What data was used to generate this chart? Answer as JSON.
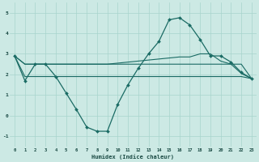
{
  "xlabel": "Humidex (Indice chaleur)",
  "background_color": "#cce9e4",
  "grid_color": "#a8d4cc",
  "line_color": "#1a6b64",
  "xlim": [
    -0.5,
    23.5
  ],
  "ylim": [
    -1.5,
    5.5
  ],
  "yticks": [
    -1,
    0,
    1,
    2,
    3,
    4,
    5
  ],
  "xticks": [
    0,
    1,
    2,
    3,
    4,
    5,
    6,
    7,
    8,
    9,
    10,
    11,
    12,
    13,
    14,
    15,
    16,
    17,
    18,
    19,
    20,
    21,
    22,
    23
  ],
  "curve1_x": [
    0,
    1,
    2,
    3,
    4,
    5,
    6,
    7,
    8,
    9,
    10,
    11,
    12,
    13,
    14,
    15,
    16,
    17,
    18,
    19,
    20,
    21,
    22,
    23
  ],
  "curve1_y": [
    2.9,
    1.7,
    2.5,
    2.5,
    1.9,
    1.1,
    0.3,
    -0.55,
    -0.75,
    -0.75,
    0.55,
    1.5,
    2.3,
    3.0,
    3.6,
    4.65,
    4.75,
    4.4,
    3.7,
    2.9,
    2.9,
    2.6,
    2.1,
    1.8
  ],
  "curve2_x": [
    0,
    1,
    2,
    3,
    4,
    5,
    6,
    7,
    8,
    9,
    10,
    11,
    12,
    13,
    14,
    15,
    16,
    17,
    18,
    19,
    20,
    21,
    22,
    23
  ],
  "curve2_y": [
    2.9,
    2.5,
    2.5,
    2.5,
    2.5,
    2.5,
    2.5,
    2.5,
    2.5,
    2.5,
    2.55,
    2.6,
    2.65,
    2.7,
    2.75,
    2.8,
    2.85,
    2.85,
    3.0,
    3.0,
    2.65,
    2.5,
    2.05,
    1.8
  ],
  "curve3_x": [
    0,
    1,
    2,
    3,
    4,
    5,
    6,
    7,
    8,
    9,
    10,
    11,
    12,
    13,
    14,
    15,
    16,
    17,
    18,
    19,
    20,
    21,
    22,
    23
  ],
  "curve3_y": [
    2.9,
    2.5,
    2.5,
    2.5,
    2.5,
    2.5,
    2.5,
    2.5,
    2.5,
    2.5,
    2.5,
    2.5,
    2.5,
    2.5,
    2.5,
    2.5,
    2.5,
    2.5,
    2.5,
    2.5,
    2.5,
    2.5,
    2.5,
    1.8
  ],
  "curve4_x": [
    0,
    1,
    2,
    3,
    4,
    5,
    6,
    7,
    8,
    9,
    10,
    11,
    12,
    13,
    14,
    15,
    16,
    17,
    18,
    19,
    20,
    21,
    22,
    23
  ],
  "curve4_y": [
    2.9,
    1.9,
    1.9,
    1.9,
    1.9,
    1.9,
    1.9,
    1.9,
    1.9,
    1.9,
    1.9,
    1.9,
    1.9,
    1.9,
    1.9,
    1.9,
    1.9,
    1.9,
    1.9,
    1.9,
    1.9,
    1.9,
    1.9,
    1.8
  ]
}
